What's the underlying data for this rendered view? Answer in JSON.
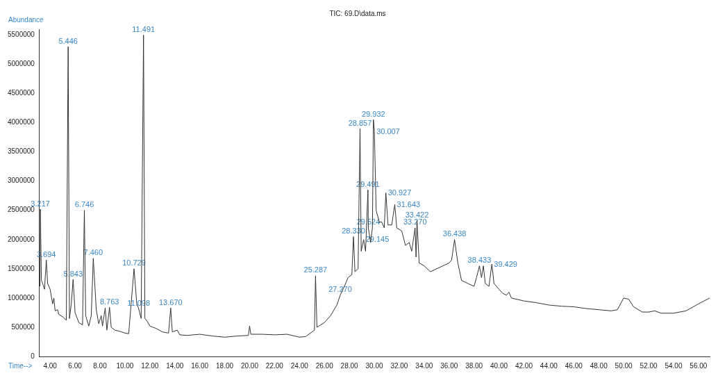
{
  "chart_data": {
    "type": "line",
    "title": "TIC: 69.D\\data.ms",
    "xlabel": "Time-->",
    "ylabel": "Abundance",
    "x": [
      3.18,
      3.217,
      3.3,
      3.4,
      3.55,
      3.694,
      3.8,
      4.0,
      4.2,
      4.3,
      4.4,
      4.6,
      4.7,
      5.0,
      5.3,
      5.446,
      5.55,
      5.7,
      5.843,
      6.0,
      6.3,
      6.6,
      6.746,
      6.85,
      7.1,
      7.3,
      7.46,
      7.7,
      7.9,
      8.1,
      8.2,
      8.418,
      8.55,
      8.763,
      8.9,
      9.2,
      9.6,
      10.0,
      10.3,
      10.729,
      10.95,
      11.098,
      11.3,
      11.491,
      11.6,
      11.8,
      12.0,
      12.5,
      13.0,
      13.5,
      13.67,
      13.8,
      14.2,
      14.4,
      15.0,
      16.0,
      17.0,
      18.0,
      19.0,
      19.9,
      20.0,
      20.1,
      21.0,
      22.0,
      23.0,
      24.0,
      24.5,
      25.0,
      25.2,
      25.287,
      25.4,
      26.0,
      26.5,
      27.0,
      27.27,
      27.6,
      27.9,
      28.2,
      28.33,
      28.45,
      28.7,
      28.857,
      28.95,
      29.145,
      29.3,
      29.491,
      29.524,
      29.7,
      29.85,
      29.932,
      30.007,
      30.15,
      30.4,
      30.6,
      30.8,
      30.927,
      31.1,
      31.4,
      31.643,
      31.8,
      32.2,
      32.5,
      32.8,
      33.0,
      33.27,
      33.35,
      33.422,
      33.6,
      34.0,
      34.5,
      35.0,
      35.5,
      36.0,
      36.2,
      36.438,
      36.7,
      37.0,
      37.5,
      38.0,
      38.2,
      38.433,
      38.6,
      38.75,
      38.9,
      39.2,
      39.429,
      39.6,
      40.0,
      40.3,
      40.6,
      40.8,
      41.0,
      42.0,
      43.0,
      44.0,
      45.0,
      46.0,
      47.0,
      48.0,
      49.0,
      49.5,
      50.0,
      50.4,
      50.8,
      51.5,
      52.0,
      52.5,
      53.0,
      54.0,
      55.0,
      56.0,
      56.9
    ],
    "series": [
      {
        "color": "#333333",
        "values": [
          1200000,
          2520000,
          1300000,
          1250000,
          1150000,
          1650000,
          1250000,
          1150000,
          900000,
          1000000,
          780000,
          800000,
          720000,
          680000,
          620000,
          5300000,
          650000,
          900000,
          1320000,
          750000,
          580000,
          540000,
          2500000,
          700000,
          520000,
          700000,
          1680000,
          800000,
          560000,
          700000,
          520000,
          830000,
          450000,
          840000,
          500000,
          450000,
          430000,
          400000,
          390000,
          1500000,
          900000,
          820000,
          650000,
          5500000,
          650000,
          600000,
          520000,
          480000,
          420000,
          400000,
          830000,
          420000,
          450000,
          370000,
          360000,
          380000,
          350000,
          330000,
          350000,
          360000,
          520000,
          380000,
          380000,
          370000,
          380000,
          330000,
          340000,
          420000,
          450000,
          1380000,
          500000,
          580000,
          700000,
          880000,
          1050000,
          1200000,
          1350000,
          1400000,
          2050000,
          1450000,
          1500000,
          3900000,
          1800000,
          2000000,
          1800000,
          2850000,
          2200000,
          1950000,
          2200000,
          4050000,
          3850000,
          2500000,
          2300000,
          2300000,
          2200000,
          2800000,
          2250000,
          2250000,
          2600000,
          2200000,
          2150000,
          1900000,
          1950000,
          1800000,
          2200000,
          1700000,
          2330000,
          1600000,
          1550000,
          1450000,
          1500000,
          1550000,
          1600000,
          1650000,
          2000000,
          1600000,
          1300000,
          1250000,
          1200000,
          1350000,
          1550000,
          1350000,
          1550000,
          1250000,
          1200000,
          1580000,
          1250000,
          1150000,
          1080000,
          1050000,
          1100000,
          1000000,
          950000,
          920000,
          880000,
          860000,
          850000,
          820000,
          800000,
          780000,
          800000,
          1000000,
          980000,
          850000,
          760000,
          760000,
          780000,
          740000,
          740000,
          780000,
          900000,
          1000000
        ]
      }
    ],
    "xlim": [
      3.15,
      56.9
    ],
    "ylim": [
      0,
      5600000
    ],
    "xticks": [
      {
        "value": 4,
        "label": "4.00"
      },
      {
        "value": 6,
        "label": "6.00"
      },
      {
        "value": 8,
        "label": "8.00"
      },
      {
        "value": 10,
        "label": "10.00"
      },
      {
        "value": 12,
        "label": "12.00"
      },
      {
        "value": 14,
        "label": "14.00"
      },
      {
        "value": 16,
        "label": "16.00"
      },
      {
        "value": 18,
        "label": "18.00"
      },
      {
        "value": 20,
        "label": "20.00"
      },
      {
        "value": 22,
        "label": "22.00"
      },
      {
        "value": 24,
        "label": "24.00"
      },
      {
        "value": 26,
        "label": "26.00"
      },
      {
        "value": 28,
        "label": "28.00"
      },
      {
        "value": 30,
        "label": "30.00"
      },
      {
        "value": 32,
        "label": "32.00"
      },
      {
        "value": 34,
        "label": "34.00"
      },
      {
        "value": 36,
        "label": "36.00"
      },
      {
        "value": 38,
        "label": "38.00"
      },
      {
        "value": 40,
        "label": "40.00"
      },
      {
        "value": 42,
        "label": "42.00"
      },
      {
        "value": 44,
        "label": "44.00"
      },
      {
        "value": 46,
        "label": "46.00"
      },
      {
        "value": 48,
        "label": "48.00"
      },
      {
        "value": 50,
        "label": "50.00"
      },
      {
        "value": 52,
        "label": "52.00"
      },
      {
        "value": 54,
        "label": "54.00"
      },
      {
        "value": 56,
        "label": "56.00"
      }
    ],
    "yticks": [
      0,
      500000,
      1000000,
      1500000,
      2000000,
      2500000,
      3000000,
      3500000,
      4000000,
      4500000,
      5000000,
      5500000
    ],
    "grid": false,
    "legend": false,
    "marker": "none",
    "line_style": "solid",
    "annotations": [
      {
        "text": "3.217",
        "x": 3.217,
        "y": 2520000
      },
      {
        "text": "3.694",
        "x": 3.694,
        "y": 1650000
      },
      {
        "text": "5.446",
        "x": 5.446,
        "y": 5300000
      },
      {
        "text": "5.843",
        "x": 5.843,
        "y": 1320000
      },
      {
        "text": "6.746",
        "x": 6.746,
        "y": 2500000
      },
      {
        "text": "7.460",
        "x": 7.46,
        "y": 1680000
      },
      {
        "text": "8.763",
        "x": 8.763,
        "y": 840000
      },
      {
        "text": "10.729",
        "x": 10.729,
        "y": 1500000
      },
      {
        "text": "11.098",
        "x": 11.098,
        "y": 820000
      },
      {
        "text": "11.491",
        "x": 11.491,
        "y": 5500000
      },
      {
        "text": "13.670",
        "x": 13.67,
        "y": 830000
      },
      {
        "text": "25.287",
        "x": 25.287,
        "y": 1380000
      },
      {
        "text": "27.270",
        "x": 27.27,
        "y": 1050000
      },
      {
        "text": "28.330",
        "x": 28.33,
        "y": 2050000
      },
      {
        "text": "28.857",
        "x": 28.857,
        "y": 3900000
      },
      {
        "text": "29.145",
        "x": 29.145,
        "y": 2000000
      },
      {
        "text": "29.491",
        "x": 29.491,
        "y": 2850000
      },
      {
        "text": "29.524",
        "x": 29.524,
        "y": 2200000
      },
      {
        "text": "29.932",
        "x": 29.932,
        "y": 4050000
      },
      {
        "text": "30.007",
        "x": 30.007,
        "y": 3850000
      },
      {
        "text": "30.927",
        "x": 30.927,
        "y": 2800000
      },
      {
        "text": "31.643",
        "x": 31.643,
        "y": 2600000
      },
      {
        "text": "33.270",
        "x": 33.27,
        "y": 2200000
      },
      {
        "text": "33.422",
        "x": 33.422,
        "y": 2330000
      },
      {
        "text": "36.438",
        "x": 36.438,
        "y": 2000000
      },
      {
        "text": "38.433",
        "x": 38.433,
        "y": 1550000
      },
      {
        "text": "39.429",
        "x": 39.429,
        "y": 1580000
      }
    ]
  }
}
